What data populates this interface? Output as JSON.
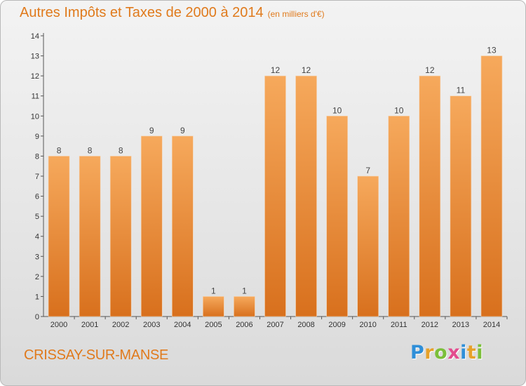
{
  "title": "Autres Impôts et Taxes de 2000 à 2014",
  "subtitle": "(en milliers d'€)",
  "town": "CRISSAY-SUR-MANSE",
  "logo": {
    "letters": [
      {
        "char": "P",
        "color": "#2f8fd8"
      },
      {
        "char": "r",
        "color": "#e6a12a"
      },
      {
        "char": "o",
        "color": "#7bbf3a"
      },
      {
        "char": "x",
        "color": "#e34b8e"
      },
      {
        "char": "i",
        "color": "#2f8fd8"
      },
      {
        "char": "t",
        "color": "#e6a12a"
      },
      {
        "char": "i",
        "color": "#7bbf3a"
      }
    ]
  },
  "colors": {
    "accent": "#e07a1c",
    "bar_top": "#f6a95c",
    "bar_bottom": "#d8701d"
  },
  "chart_data": {
    "type": "bar",
    "categories": [
      "2000",
      "2001",
      "2002",
      "2003",
      "2004",
      "2005",
      "2006",
      "2007",
      "2008",
      "2009",
      "2010",
      "2011",
      "2012",
      "2013",
      "2014"
    ],
    "values": [
      8,
      8,
      8,
      9,
      9,
      1,
      1,
      12,
      12,
      10,
      7,
      10,
      12,
      11,
      13
    ],
    "ylim": [
      0,
      14
    ],
    "yticks": [
      0,
      1,
      2,
      3,
      4,
      5,
      6,
      7,
      8,
      9,
      10,
      11,
      12,
      13,
      14
    ],
    "grid": false,
    "data_labels": true
  }
}
